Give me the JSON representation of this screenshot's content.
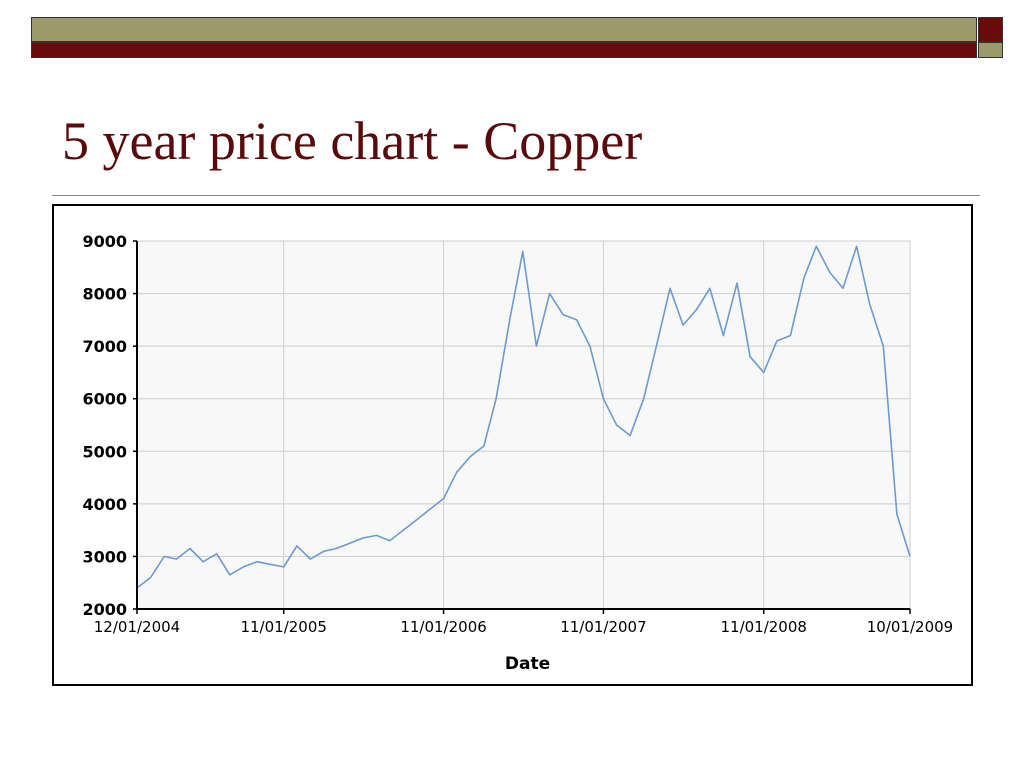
{
  "slide": {
    "title": "5 year price chart - Copper",
    "colors": {
      "olive": "#9c9a6a",
      "maroon": "#6b0a0a",
      "title": "#5a0a0a"
    }
  },
  "chart_data": {
    "type": "line",
    "title": "",
    "xlabel": "Date",
    "ylabel": "",
    "ylim": [
      2000,
      9000
    ],
    "yticks": [
      2000,
      3000,
      4000,
      5000,
      6000,
      7000,
      8000,
      9000
    ],
    "xticks": [
      "12/01/2004",
      "11/01/2005",
      "11/01/2006",
      "11/01/2007",
      "11/01/2008",
      "10/01/2009"
    ],
    "xlim": [
      "12/01/2004",
      "10/01/2009"
    ],
    "grid": true,
    "line_color": "#6b9bd1",
    "series": [
      {
        "values": [
          [
            "12/01/2004",
            2400
          ],
          [
            "01/01/2005",
            2600
          ],
          [
            "02/01/2005",
            3000
          ],
          [
            "03/01/2005",
            2950
          ],
          [
            "04/01/2005",
            3150
          ],
          [
            "05/01/2005",
            2900
          ],
          [
            "06/01/2005",
            3050
          ],
          [
            "07/01/2005",
            2650
          ],
          [
            "08/01/2005",
            2800
          ],
          [
            "09/01/2005",
            2900
          ],
          [
            "10/01/2005",
            2850
          ],
          [
            "11/01/2005",
            2800
          ],
          [
            "12/01/2005",
            3200
          ],
          [
            "01/01/2006",
            2950
          ],
          [
            "02/01/2006",
            3100
          ],
          [
            "03/01/2006",
            3150
          ],
          [
            "04/01/2006",
            3250
          ],
          [
            "05/01/2006",
            3350
          ],
          [
            "06/01/2006",
            3400
          ],
          [
            "07/01/2006",
            3300
          ],
          [
            "08/01/2006",
            3500
          ],
          [
            "09/01/2006",
            3700
          ],
          [
            "10/01/2006",
            3900
          ],
          [
            "11/01/2006",
            4100
          ],
          [
            "12/01/2006",
            4600
          ],
          [
            "01/01/2007",
            4900
          ],
          [
            "02/01/2007",
            5100
          ],
          [
            "03/01/2007",
            6000
          ],
          [
            "04/01/2007",
            7500
          ],
          [
            "05/01/2007",
            8800
          ],
          [
            "06/01/2007",
            7000
          ],
          [
            "07/01/2007",
            8000
          ],
          [
            "08/01/2007",
            7600
          ],
          [
            "09/01/2007",
            7500
          ],
          [
            "10/01/2007",
            7000
          ],
          [
            "11/01/2007",
            6000
          ],
          [
            "12/01/2007",
            5500
          ],
          [
            "01/01/2008",
            5300
          ],
          [
            "02/01/2008",
            6000
          ],
          [
            "03/01/2008",
            7000
          ],
          [
            "04/01/2008",
            8100
          ],
          [
            "05/01/2008",
            7400
          ],
          [
            "06/01/2008",
            7700
          ],
          [
            "07/01/2008",
            8100
          ],
          [
            "08/01/2008",
            7200
          ],
          [
            "09/01/2008",
            8200
          ],
          [
            "10/01/2008",
            6800
          ],
          [
            "11/01/2008",
            6500
          ],
          [
            "12/01/2008",
            7100
          ],
          [
            "01/01/2009",
            7200
          ],
          [
            "02/01/2009",
            8300
          ],
          [
            "03/01/2009",
            8900
          ],
          [
            "04/01/2009",
            8400
          ],
          [
            "05/01/2009",
            8100
          ],
          [
            "06/01/2009",
            8900
          ],
          [
            "07/01/2009",
            7800
          ],
          [
            "08/01/2009",
            7000
          ],
          [
            "09/01/2009",
            3800
          ],
          [
            "10/01/2009",
            3000
          ]
        ]
      }
    ]
  }
}
